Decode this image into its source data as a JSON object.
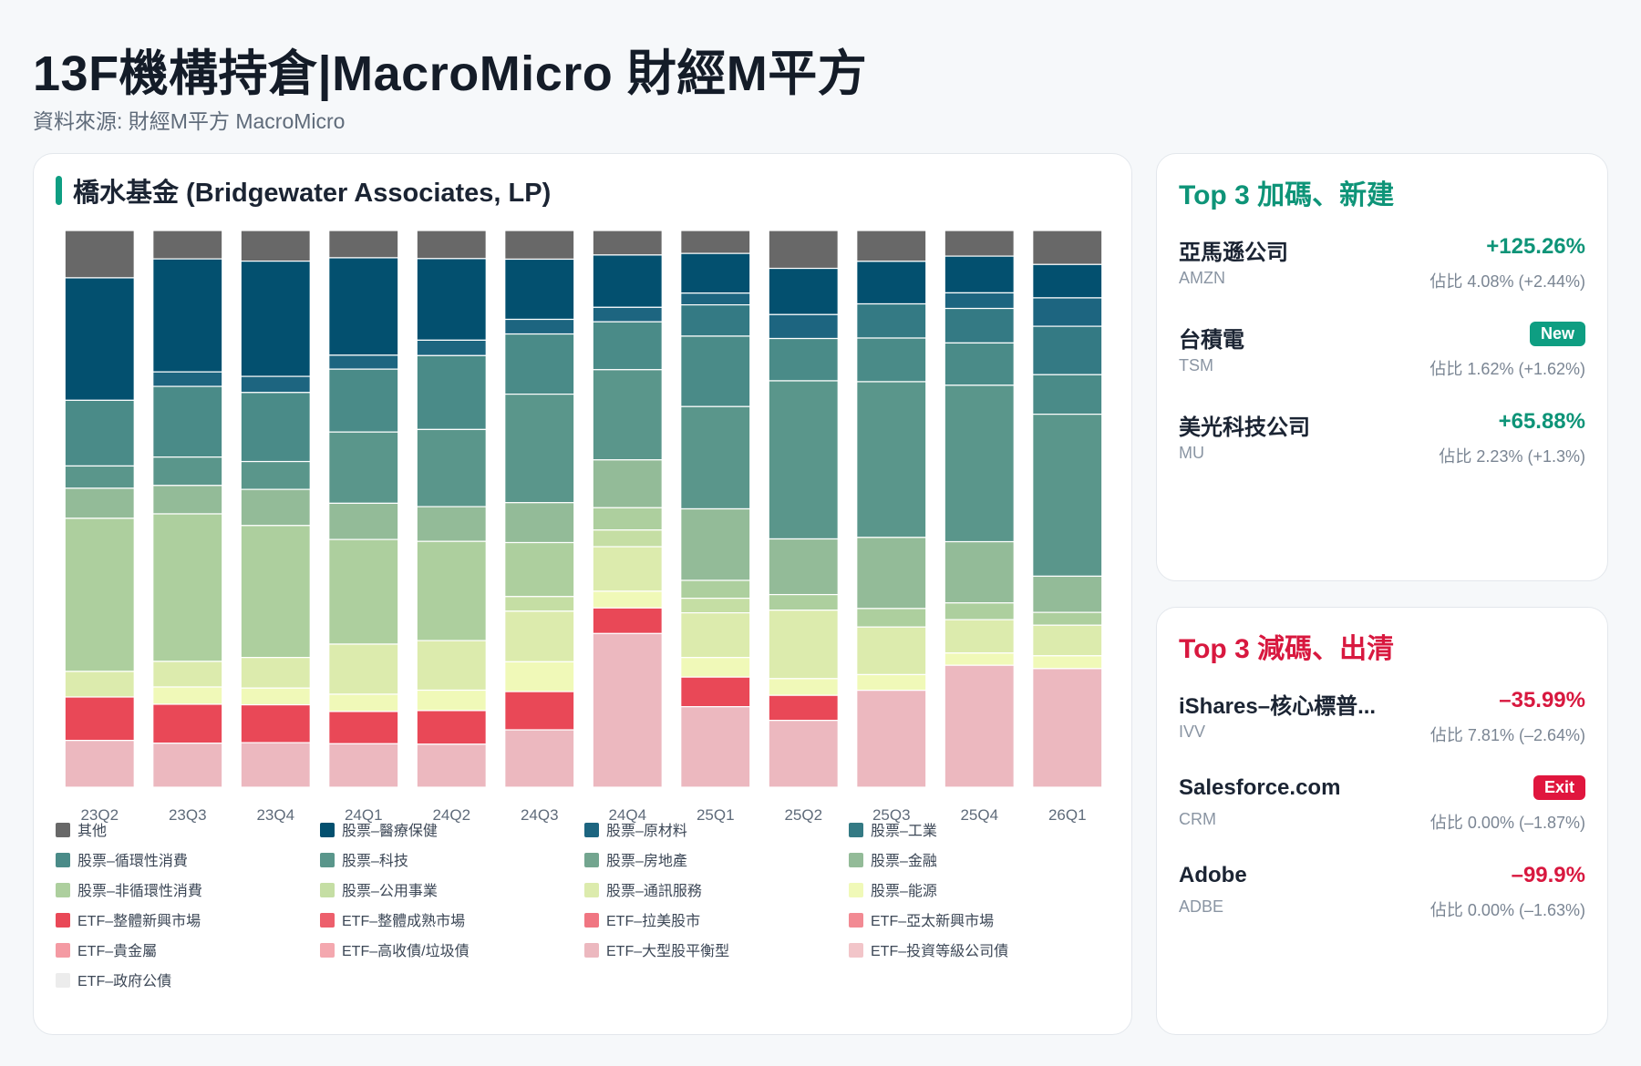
{
  "header": {
    "title": "13F機構持倉|MacroMicro 財經M平方",
    "source": "資料來源: 財經M平方 MacroMicro"
  },
  "chart_data": {
    "type": "bar",
    "stacked": true,
    "normalized": true,
    "title": "橋水基金 (Bridgewater Associates, LP)",
    "xlabel": "",
    "ylabel": "",
    "ylim": [
      0,
      100
    ],
    "grid": false,
    "legend_placement": "bottom",
    "categories": [
      "23Q2",
      "23Q3",
      "23Q4",
      "24Q1",
      "24Q2",
      "24Q3",
      "24Q4",
      "25Q1",
      "25Q2",
      "25Q3",
      "25Q4",
      "26Q1"
    ],
    "series": [
      {
        "name": "其他",
        "color": "#686868",
        "values": [
          8.5,
          5.1,
          5.5,
          4.9,
          5.1,
          5.1,
          4.4,
          4.1,
          6.8,
          5.5,
          4.6,
          6.1
        ]
      },
      {
        "name": "股票–醫療保健",
        "color": "#03506f",
        "values": [
          22.0,
          20.3,
          20.7,
          17.5,
          14.8,
          10.7,
          9.4,
          7.1,
          8.3,
          7.6,
          6.6,
          6.0
        ]
      },
      {
        "name": "股票–原材料",
        "color": "#1d6580",
        "values": [
          0.0,
          2.6,
          2.9,
          2.5,
          2.8,
          2.6,
          2.6,
          2.1,
          4.3,
          0.0,
          2.8,
          5.1
        ]
      },
      {
        "name": "股票–工業",
        "color": "#347a84",
        "values": [
          0.0,
          0.0,
          0.0,
          0.0,
          0.0,
          0.0,
          0.0,
          5.6,
          0.0,
          6.1,
          6.2,
          8.7
        ]
      },
      {
        "name": "股票–循環性消費",
        "color": "#4a8b88",
        "values": [
          11.8,
          12.7,
          12.4,
          11.3,
          13.4,
          10.7,
          8.6,
          12.6,
          7.6,
          7.8,
          7.6,
          7.1
        ]
      },
      {
        "name": "股票–科技",
        "color": "#5a968b",
        "values": [
          4.0,
          5.1,
          5.0,
          12.8,
          14.0,
          19.3,
          16.2,
          18.3,
          28.4,
          27.8,
          28.1,
          29.1
        ]
      },
      {
        "name": "股票–房地產",
        "color": "#73a58f",
        "values": [
          0.0,
          0.0,
          0.0,
          0.0,
          0.0,
          0.0,
          0.0,
          0.0,
          0.0,
          0.0,
          0.0,
          0.0
        ]
      },
      {
        "name": "股票–金融",
        "color": "#93bb98",
        "values": [
          5.4,
          5.1,
          6.5,
          6.5,
          6.3,
          7.1,
          8.6,
          12.8,
          10.0,
          12.7,
          11.0,
          6.5
        ]
      },
      {
        "name": "股票–非循環性消費",
        "color": "#adcf9e",
        "values": [
          27.5,
          26.5,
          23.7,
          18.8,
          18.0,
          9.6,
          4.0,
          3.2,
          2.8,
          3.3,
          3.0,
          2.3
        ]
      },
      {
        "name": "股票–公用事業",
        "color": "#c5dea4",
        "values": [
          0.0,
          0.0,
          0.0,
          0.0,
          0.0,
          2.6,
          3.0,
          2.6,
          0.0,
          0.0,
          0.0,
          0.0
        ]
      },
      {
        "name": "股票–通訊服務",
        "color": "#dcebad",
        "values": [
          4.6,
          4.6,
          5.5,
          9.0,
          9.0,
          9.0,
          8.0,
          8.0,
          12.3,
          8.5,
          6.0,
          5.5
        ]
      },
      {
        "name": "股票–能源",
        "color": "#f0f9b8",
        "values": [
          0.0,
          3.1,
          3.0,
          3.1,
          3.7,
          5.3,
          3.0,
          3.5,
          3.0,
          2.8,
          2.2,
          2.3
        ]
      },
      {
        "name": "ETF–整體新興市場",
        "color": "#e94857",
        "values": [
          7.8,
          7.0,
          6.8,
          5.8,
          6.1,
          6.8,
          4.6,
          5.3,
          4.5,
          0.0,
          0.0,
          0.0
        ]
      },
      {
        "name": "ETF–整體成熟市場",
        "color": "#ed5f6c",
        "values": [
          0.0,
          0.0,
          0.0,
          0.0,
          0.0,
          0.0,
          0.0,
          0.0,
          0.0,
          0.0,
          0.0,
          0.0
        ]
      },
      {
        "name": "ETF–拉美股市",
        "color": "#f07682",
        "values": [
          0.0,
          0.0,
          0.0,
          0.0,
          0.0,
          0.0,
          0.0,
          0.0,
          0.0,
          0.0,
          0.0,
          0.0
        ]
      },
      {
        "name": "ETF–亞太新興市場",
        "color": "#f28a93",
        "values": [
          0.0,
          0.0,
          0.0,
          0.0,
          0.0,
          0.0,
          0.0,
          0.0,
          0.0,
          0.0,
          0.0,
          0.0
        ]
      },
      {
        "name": "ETF–貴金屬",
        "color": "#f49aa3",
        "values": [
          0.0,
          0.0,
          0.0,
          0.0,
          0.0,
          0.0,
          0.0,
          0.0,
          0.0,
          0.0,
          0.0,
          0.0
        ]
      },
      {
        "name": "ETF–高收債/垃圾債",
        "color": "#f4a8af",
        "values": [
          0.0,
          0.0,
          0.0,
          0.0,
          0.0,
          0.0,
          0.0,
          0.0,
          0.0,
          0.0,
          0.0,
          0.0
        ]
      },
      {
        "name": "ETF–大型股平衡型",
        "color": "#ecb8bf",
        "values": [
          8.4,
          7.9,
          8.0,
          7.8,
          7.8,
          10.2,
          27.6,
          14.4,
          12.0,
          17.3,
          21.9,
          21.3
        ]
      },
      {
        "name": "ETF–投資等級公司債",
        "color": "#f2c5c9",
        "values": [
          0.0,
          0.0,
          0.0,
          0.0,
          0.0,
          0.0,
          0.0,
          0.0,
          0.0,
          0.0,
          0.0,
          0.0
        ]
      },
      {
        "name": "ETF–政府公債",
        "color": "#ececec",
        "values": [
          0.0,
          0.0,
          0.0,
          0.0,
          0.0,
          0.0,
          0.0,
          0.0,
          0.0,
          0.0,
          0.0,
          0.0
        ]
      }
    ]
  },
  "top_add": {
    "title": "Top 3 加碼、新建",
    "items": [
      {
        "name": "亞馬遜公司",
        "ticker": "AMZN",
        "change": "+125.26%",
        "weight": "佔比 4.08% (+2.44%)",
        "badge": ""
      },
      {
        "name": "台積電",
        "ticker": "TSM",
        "change": "",
        "weight": "佔比 1.62% (+1.62%)",
        "badge": "New"
      },
      {
        "name": "美光科技公司",
        "ticker": "MU",
        "change": "+65.88%",
        "weight": "佔比 2.23% (+1.3%)",
        "badge": ""
      }
    ]
  },
  "top_reduce": {
    "title": "Top 3 減碼、出清",
    "items": [
      {
        "name": "iShares–核心標普...",
        "ticker": "IVV",
        "change": "–35.99%",
        "weight": "佔比 7.81% (–2.64%)",
        "badge": ""
      },
      {
        "name": "Salesforce.com",
        "ticker": "CRM",
        "change": "",
        "weight": "佔比 0.00% (–1.87%)",
        "badge": "Exit"
      },
      {
        "name": "Adobe",
        "ticker": "ADBE",
        "change": "–99.9%",
        "weight": "佔比 0.00% (–1.63%)",
        "badge": ""
      }
    ]
  }
}
